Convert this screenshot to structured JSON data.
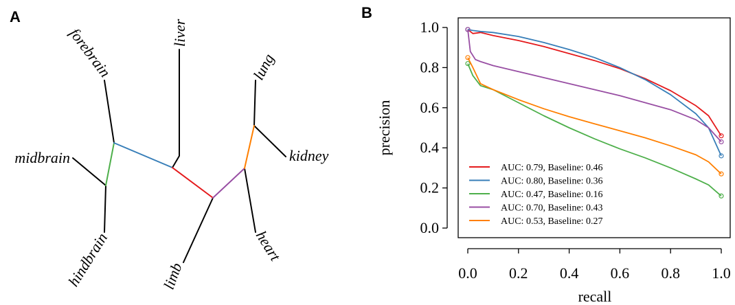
{
  "panels": {
    "a_label": "A",
    "b_label": "B"
  },
  "colors": {
    "red": "#e41a1c",
    "blue": "#377eb8",
    "green": "#4daf4a",
    "purple": "#984ea3",
    "orange": "#ff7f00"
  },
  "tree": {
    "type": "unrooted-tree",
    "tips": [
      "forebrain",
      "midbrain",
      "hindbrain",
      "liver",
      "limb",
      "lung",
      "kidney",
      "heart"
    ],
    "colored_branches": [
      {
        "from": "forebrain/midbrain/hindbrain",
        "color": "blue"
      },
      {
        "from": "midbrain/hindbrain",
        "color": "green"
      },
      {
        "from": "center",
        "color": "red"
      },
      {
        "from": "lung/kidney/heart",
        "color": "purple"
      },
      {
        "from": "lung/kidney",
        "color": "orange"
      }
    ]
  },
  "chart_data": {
    "type": "line",
    "xlabel": "recall",
    "ylabel": "precision",
    "xlim": [
      0,
      1
    ],
    "ylim": [
      0,
      1
    ],
    "xticks": [
      "0.0",
      "0.2",
      "0.4",
      "0.6",
      "0.8",
      "1.0"
    ],
    "yticks": [
      "0.0",
      "0.2",
      "0.4",
      "0.6",
      "0.8",
      "1.0"
    ],
    "legend_position": "bottom-left",
    "series": [
      {
        "name": "AUC: 0.79, Baseline: 0.46",
        "color": "#e41a1c",
        "x": [
          0,
          0.02,
          0.05,
          0.1,
          0.2,
          0.3,
          0.4,
          0.5,
          0.6,
          0.7,
          0.8,
          0.9,
          0.95,
          1.0
        ],
        "y": [
          0.99,
          0.97,
          0.975,
          0.96,
          0.935,
          0.905,
          0.87,
          0.835,
          0.795,
          0.745,
          0.685,
          0.61,
          0.56,
          0.46
        ]
      },
      {
        "name": "AUC: 0.80, Baseline: 0.36",
        "color": "#377eb8",
        "x": [
          0,
          0.02,
          0.05,
          0.1,
          0.2,
          0.3,
          0.4,
          0.5,
          0.6,
          0.7,
          0.8,
          0.9,
          0.95,
          1.0
        ],
        "y": [
          0.99,
          0.985,
          0.98,
          0.975,
          0.955,
          0.925,
          0.89,
          0.85,
          0.8,
          0.74,
          0.665,
          0.57,
          0.5,
          0.36
        ]
      },
      {
        "name": "AUC: 0.47, Baseline: 0.16",
        "color": "#4daf4a",
        "x": [
          0,
          0.02,
          0.05,
          0.1,
          0.2,
          0.3,
          0.4,
          0.5,
          0.6,
          0.7,
          0.8,
          0.9,
          0.95,
          1.0
        ],
        "y": [
          0.82,
          0.76,
          0.71,
          0.69,
          0.625,
          0.56,
          0.5,
          0.445,
          0.395,
          0.35,
          0.3,
          0.245,
          0.215,
          0.16
        ]
      },
      {
        "name": "AUC: 0.70, Baseline: 0.43",
        "color": "#984ea3",
        "x": [
          0,
          0.01,
          0.03,
          0.05,
          0.1,
          0.2,
          0.3,
          0.4,
          0.5,
          0.6,
          0.7,
          0.8,
          0.9,
          0.95,
          1.0
        ],
        "y": [
          0.99,
          0.88,
          0.84,
          0.83,
          0.81,
          0.78,
          0.75,
          0.72,
          0.69,
          0.66,
          0.625,
          0.59,
          0.54,
          0.5,
          0.43
        ]
      },
      {
        "name": "AUC: 0.53, Baseline: 0.27",
        "color": "#ff7f00",
        "x": [
          0,
          0.02,
          0.05,
          0.1,
          0.2,
          0.3,
          0.4,
          0.5,
          0.6,
          0.7,
          0.8,
          0.9,
          0.95,
          1.0
        ],
        "y": [
          0.85,
          0.8,
          0.72,
          0.69,
          0.64,
          0.595,
          0.555,
          0.52,
          0.485,
          0.45,
          0.41,
          0.365,
          0.33,
          0.27
        ]
      }
    ]
  }
}
